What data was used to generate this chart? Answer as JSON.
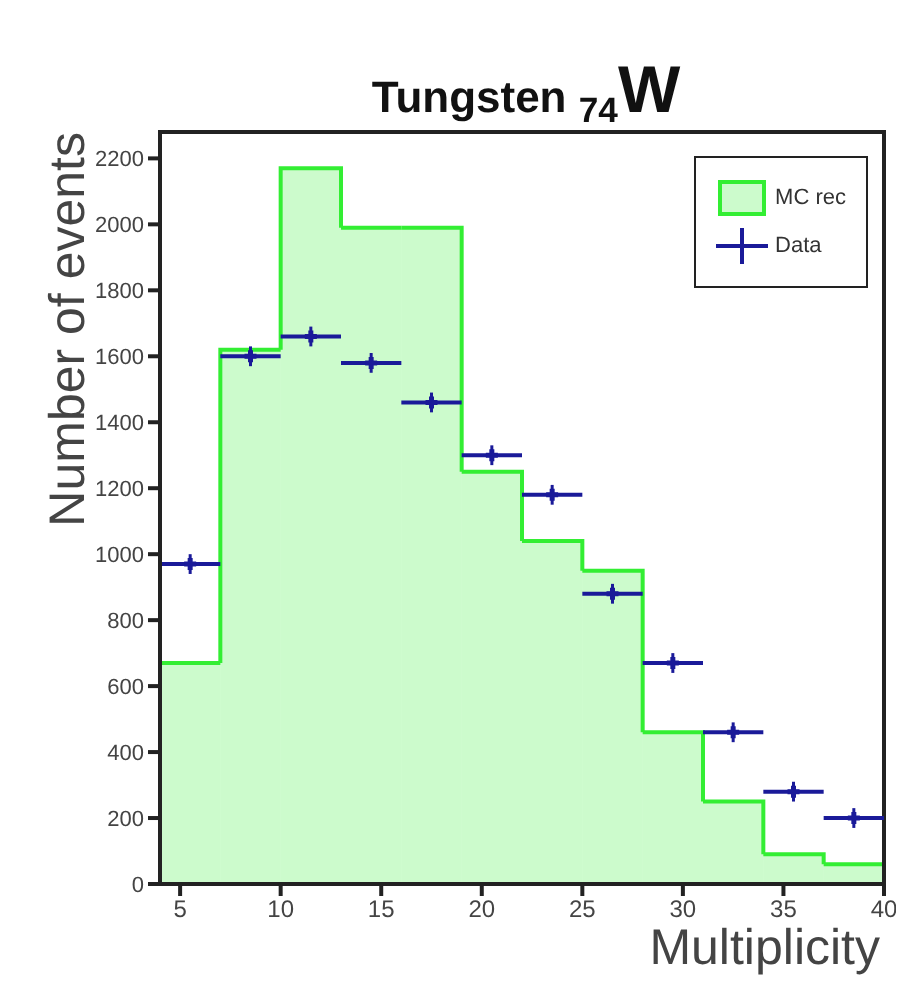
{
  "chart_data": {
    "type": "histogram",
    "title": "Tungsten $_{74}$W",
    "xlabel": "Multiplicity",
    "ylabel": "Number of events",
    "bins": [
      4,
      7,
      10,
      13,
      16,
      19,
      22,
      25,
      28,
      31,
      34,
      37,
      40
    ],
    "xlim": [
      4,
      40
    ],
    "xticks": [
      5,
      10,
      15,
      20,
      25,
      30,
      35,
      40
    ],
    "ylim": [
      0,
      2280
    ],
    "yticks": [
      0,
      200,
      400,
      600,
      800,
      1000,
      1200,
      1400,
      1600,
      1800,
      2000,
      2200
    ],
    "legend": "top right",
    "series": [
      {
        "name": "MC rec",
        "color": "#33ee33",
        "values": [
          670,
          1620,
          2170,
          1990,
          1990,
          1250,
          1040,
          950,
          460,
          250,
          90,
          60
        ]
      },
      {
        "name": "Data",
        "type": "scatter",
        "color": "#1a1a99",
        "marker": "cross",
        "x": [
          5.5,
          8.5,
          11.5,
          14.5,
          17.5,
          20.5,
          23.5,
          26.5,
          29.5,
          32.5,
          35.5,
          38.5
        ],
        "values": [
          970,
          1600,
          1660,
          1580,
          1460,
          1300,
          1180,
          880,
          670,
          460,
          280,
          200
        ],
        "errors": [
          30,
          30,
          30,
          30,
          30,
          30,
          30,
          30,
          30,
          30,
          30,
          30
        ],
        "xerrors": [
          1.5,
          1.5,
          1.5,
          1.5,
          1.5,
          1.5,
          1.5,
          1.5,
          1.5,
          1.5,
          1.5,
          1.5
        ]
      }
    ]
  }
}
